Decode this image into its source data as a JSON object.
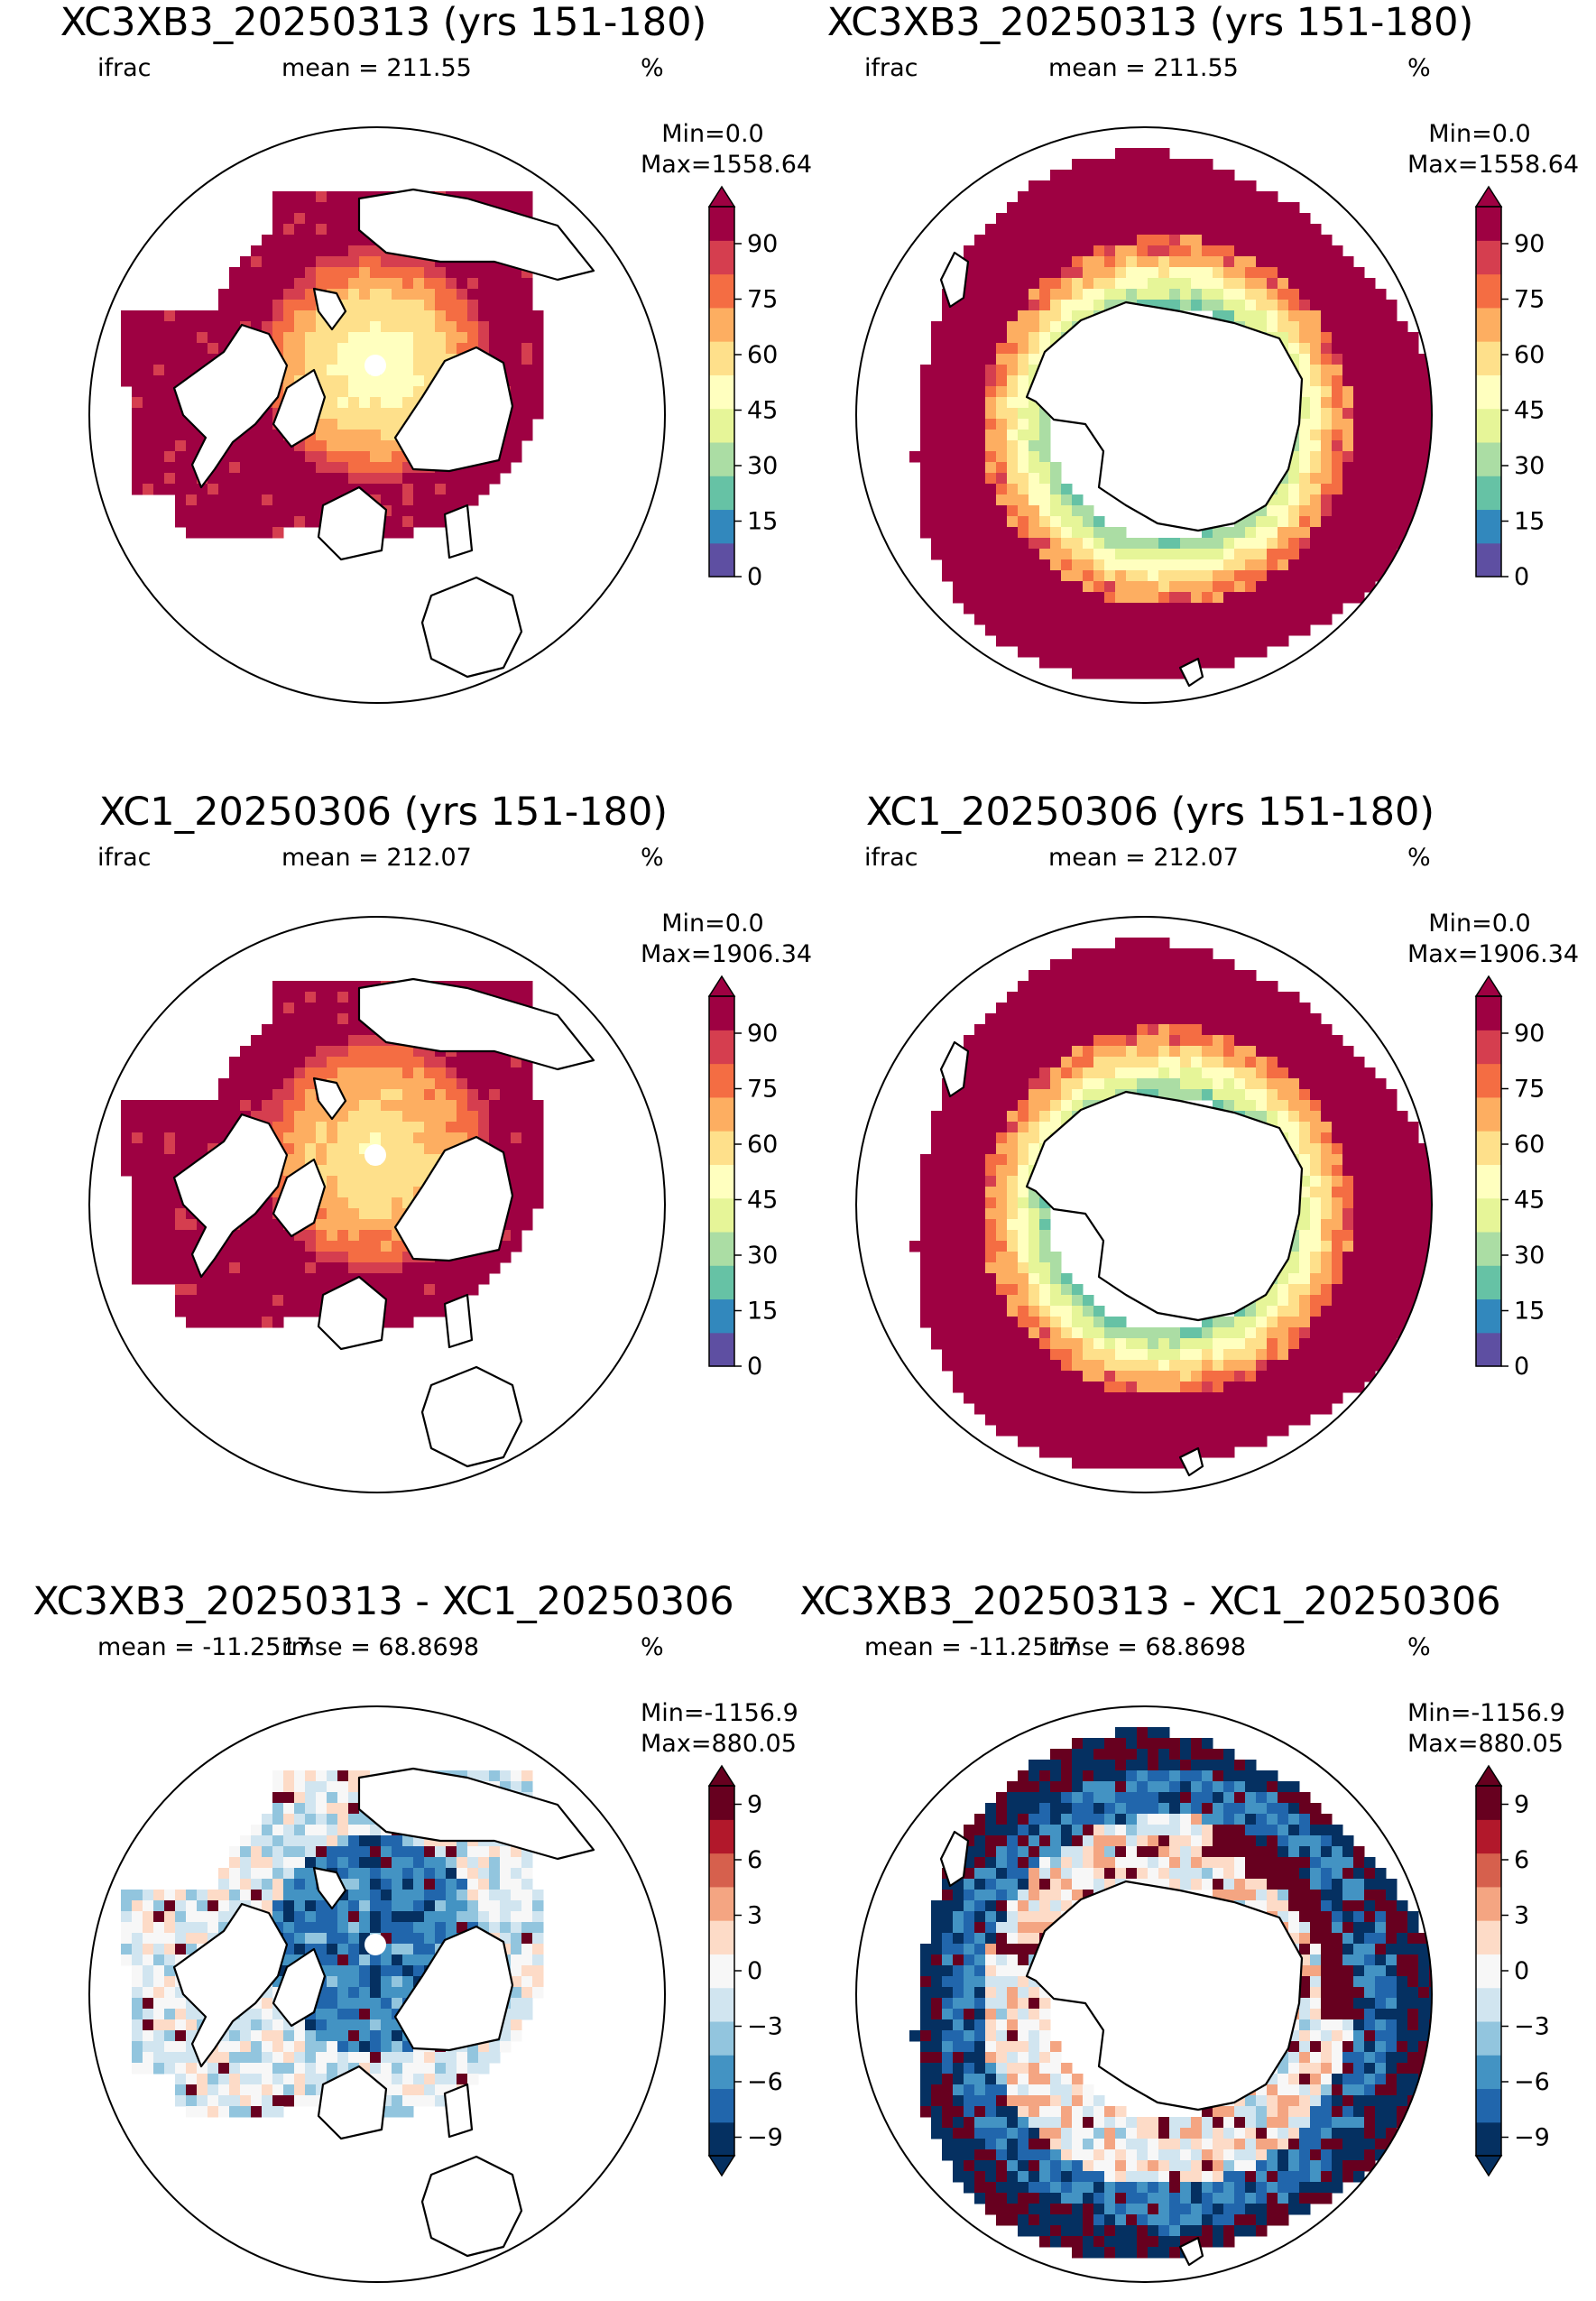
{
  "panels": [
    {
      "title": "XC3XB3_20250313 (yrs 151-180)",
      "var": "ifrac",
      "stat": "mean = 211.55",
      "units": "%",
      "min": "Min=0.0",
      "max": "Max=1558.64",
      "hemisphere": "north",
      "kind": "abs"
    },
    {
      "title": "XC3XB3_20250313 (yrs 151-180)",
      "var": "ifrac",
      "stat": "mean = 211.55",
      "units": "%",
      "min": "Min=0.0",
      "max": "Max=1558.64",
      "hemisphere": "south",
      "kind": "abs"
    },
    {
      "title": "XC1_20250306 (yrs 151-180)",
      "var": "ifrac",
      "stat": "mean = 212.07",
      "units": "%",
      "min": "Min=0.0",
      "max": "Max=1906.34",
      "hemisphere": "north",
      "kind": "abs"
    },
    {
      "title": "XC1_20250306 (yrs 151-180)",
      "var": "ifrac",
      "stat": "mean = 212.07",
      "units": "%",
      "min": "Min=0.0",
      "max": "Max=1906.34",
      "hemisphere": "south",
      "kind": "abs"
    },
    {
      "title": "XC3XB3_20250313 - XC1_20250306",
      "var": "mean = -11.2517",
      "stat": "rmse = 68.8698",
      "units": "%",
      "min": "Min=-1156.9",
      "max": "Max=880.05",
      "hemisphere": "north",
      "kind": "diff"
    },
    {
      "title": "XC3XB3_20250313 - XC1_20250306",
      "var": "mean = -11.2517",
      "stat": "rmse = 68.8698",
      "units": "%",
      "min": "Min=-1156.9",
      "max": "Max=880.05",
      "hemisphere": "south",
      "kind": "diff"
    }
  ],
  "colorbars": {
    "abs": {
      "ticks": [
        "0",
        "15",
        "30",
        "45",
        "60",
        "75",
        "90"
      ],
      "range": [
        0,
        100
      ],
      "colors": [
        "#5e4fa2",
        "#3288bd",
        "#66c2a5",
        "#abdda4",
        "#e6f598",
        "#ffffbf",
        "#fee08b",
        "#fdae61",
        "#f46d43",
        "#d53e4f",
        "#9e0142"
      ],
      "extend": "max"
    },
    "diff": {
      "ticks": [
        "−9",
        "−6",
        "−3",
        "0",
        "3",
        "6",
        "9"
      ],
      "range": [
        -10,
        10
      ],
      "colors": [
        "#053061",
        "#2166ac",
        "#4393c3",
        "#92c5de",
        "#d1e5f0",
        "#f7f7f7",
        "#fddbc7",
        "#f4a582",
        "#d6604d",
        "#b2182b",
        "#67001f"
      ],
      "extend": "both"
    }
  }
}
